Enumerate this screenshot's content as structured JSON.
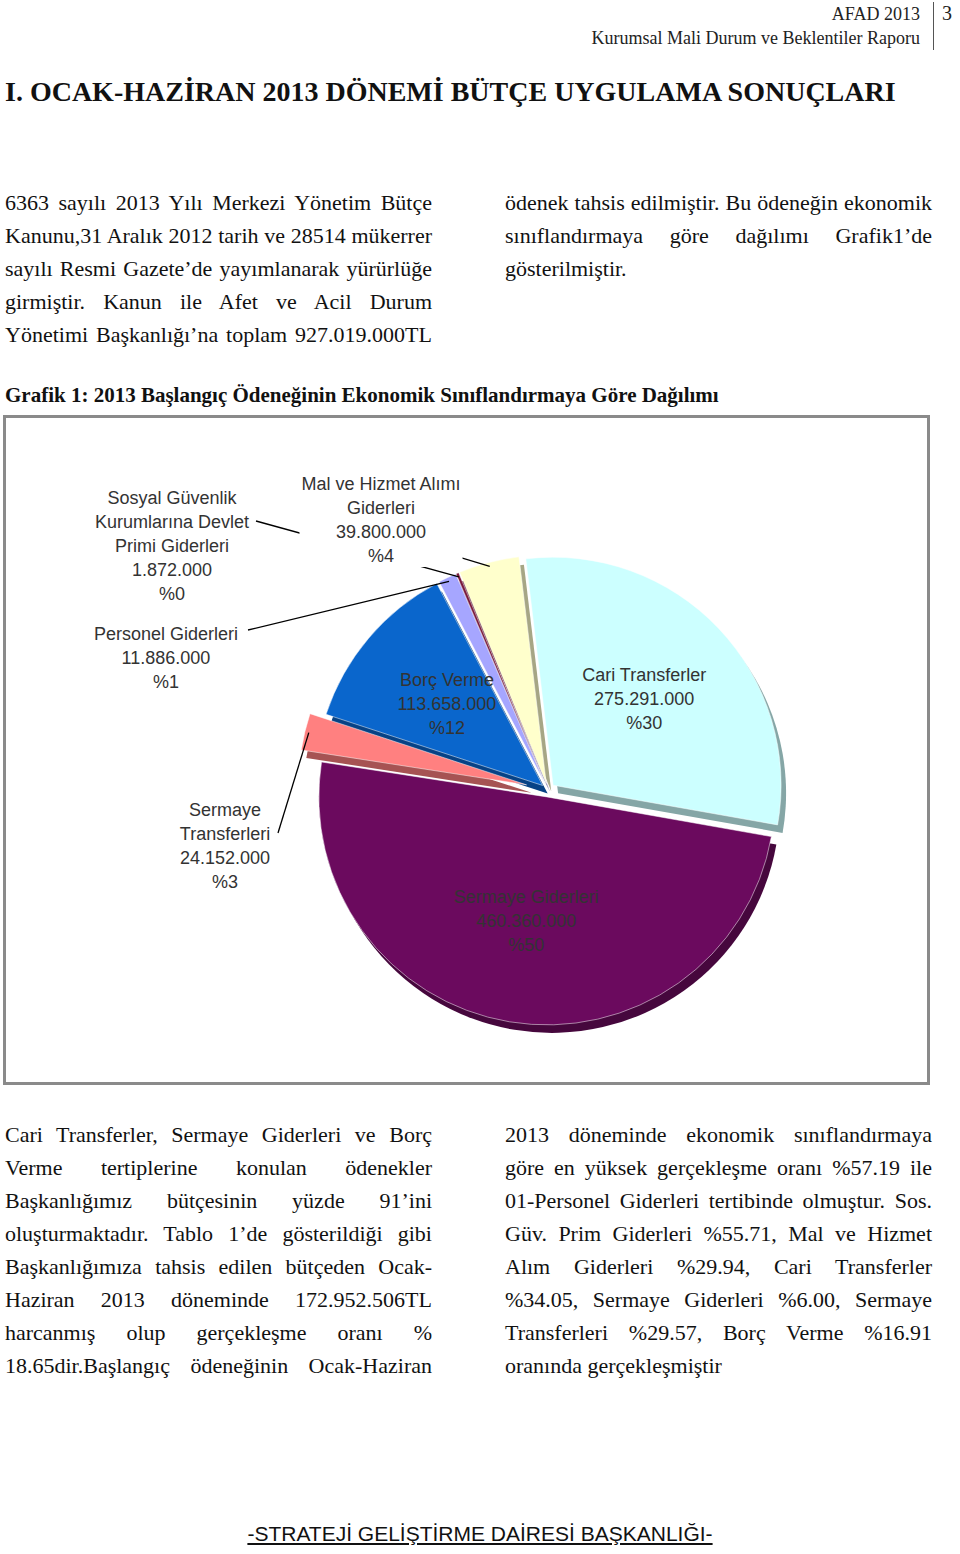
{
  "header": {
    "report": "AFAD 2013",
    "subtitle": "Kurumsal Mali Durum ve Beklentiler Raporu",
    "page": "3"
  },
  "heading": "I. OCAK-HAZİRAN 2013 DÖNEMİ BÜTÇE UYGULAMA SONUÇLARI",
  "paragraphs": [
    "6363 sayılı 2013 Yılı Merkezi Yönetim Bütçe Kanunu,31 Aralık 2012 tarih ve 28514 mükerrer sayılı Resmi Gazete’de yayımlanarak yürürlüğe girmiştir. Kanun ile Afet ve Acil Durum Yönetimi Başkanlığı’na toplam 927.019.000TL ödenek tahsis edilmiştir. Bu ödeneğin ekonomik sınıflandırmaya göre dağılımı Grafik1’de gösterilmiştir.",
    "Cari Transferler, Sermaye Giderleri ve Borç Verme tertiplerine konulan ödenekler Başkanlığımız bütçesinin yüzde 91’ini oluşturmaktadır. Tablo 1’de gösterildiği gibi Başkanlığımıza tahsis edilen bütçeden Ocak-Haziran 2013 döneminde 172.952.506TL harcanmış olup gerçekleşme oranı % 18.65dir.Başlangıç ödeneğinin Ocak-Haziran 2013 döneminde ekonomik sınıflandırmaya göre en yüksek gerçekleşme oranı %57.19 ile 01-Personel Giderleri tertibinde olmuştur. Sos. Güv. Prim Giderleri %55.71, Mal ve Hizmet Alım Giderleri %29.94, Cari Transferler %34.05, Sermaye Giderleri %6.00, Sermaye Transferleri %29.57, Borç Verme %16.91 oranında gerçekleşmiştir"
  ],
  "chart_data": {
    "type": "pie",
    "title": "Grafik 1: 2013 Başlangıç Ödeneğinin Ekonomik Sınıflandırmaya Göre Dağılımı",
    "categories": [
      "Cari Transferler",
      "Sermaye Giderleri",
      "Sermaye Transferleri",
      "Borç Verme",
      "Personel Giderleri",
      "Sosyal Güvenlik Kurumlarına Devlet Primi Giderleri",
      "Mal ve Hizmet Alımı Giderleri"
    ],
    "values": [
      275291000,
      460360000,
      24152000,
      113658000,
      11886000,
      1872000,
      39800000
    ],
    "value_labels": [
      "275.291.000",
      "460.360.000",
      "24.152.000",
      "113.658.000",
      "11.886.000",
      "1.872.000",
      "39.800.000"
    ],
    "percents": [
      30,
      50,
      3,
      12,
      1,
      0,
      4
    ],
    "percent_labels": [
      "%30",
      "%50",
      "%3",
      "%12",
      "%1",
      "%0",
      "%4"
    ],
    "colors": [
      "#ccffff",
      "#6b0a5e",
      "#ff8080",
      "#0a66cc",
      "#a6a6ff",
      "#7b1a3c",
      "#ffffcc"
    ],
    "data_labels": true
  },
  "footer": "-STRATEJİ GELİŞTİRME DAİRESİ BAŞKANLIĞI-"
}
